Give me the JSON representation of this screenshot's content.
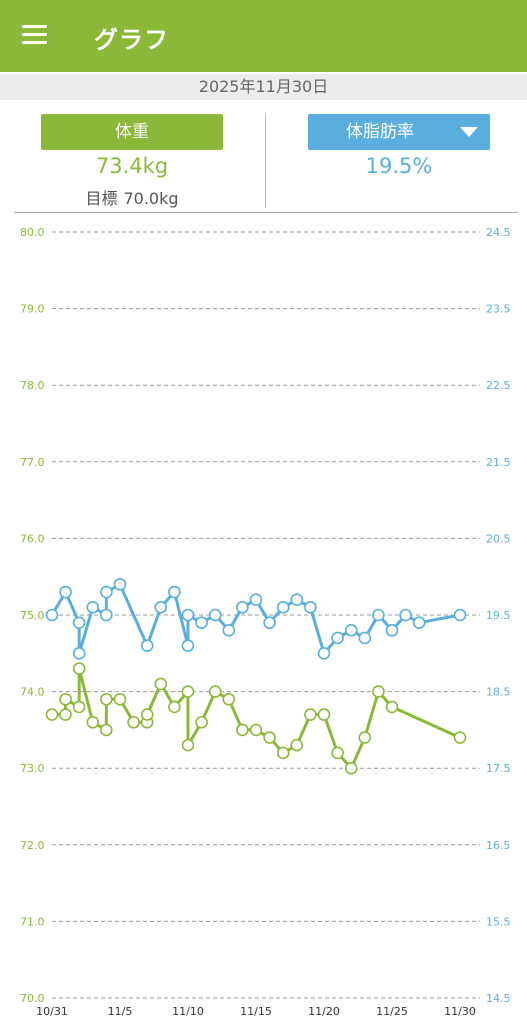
{
  "header": {
    "title": "グラフ",
    "menu_icon": "hamburger-menu-icon"
  },
  "date": "2025年11月30日",
  "weight": {
    "button_label": "体重",
    "value": "73.4kg",
    "goal_label": "目標",
    "goal_value": "70.0kg",
    "color": "#8cb83a"
  },
  "body_fat": {
    "button_label": "体脂肪率",
    "value": "19.5%",
    "dropdown_icon": "caret-down-icon",
    "color": "#5aaedd"
  },
  "chart_data": {
    "type": "line",
    "x_tick_labels": [
      "10/31",
      "11/5",
      "11/10",
      "11/15",
      "11/20",
      "11/25",
      "11/30"
    ],
    "x": [
      "10/31",
      "11/1",
      "11/2",
      "11/3",
      "11/4",
      "11/5",
      "11/6",
      "11/7",
      "11/8",
      "11/9",
      "11/10",
      "11/11",
      "11/12",
      "11/13",
      "11/14",
      "11/15",
      "11/16",
      "11/17",
      "11/18",
      "11/19",
      "11/20",
      "11/21",
      "11/22",
      "11/23",
      "11/24",
      "11/25",
      "11/26",
      "11/27",
      "11/28",
      "11/29",
      "11/30"
    ],
    "y_left": {
      "range": [
        70.0,
        80.0
      ],
      "ticks": [
        "80.0",
        "79.0",
        "78.0",
        "77.0",
        "76.0",
        "75.0",
        "74.0",
        "73.0",
        "72.0",
        "71.0",
        "70.0"
      ],
      "color": "#8cb83a"
    },
    "y_right": {
      "range": [
        14.5,
        24.5
      ],
      "ticks": [
        "24.5",
        "23.5",
        "22.5",
        "21.5",
        "20.5",
        "19.5",
        "18.5",
        "17.5",
        "16.5",
        "15.5",
        "14.5"
      ],
      "color": "#5aaedd"
    },
    "grid": "horizontal dashed",
    "series": [
      {
        "name": "体重",
        "axis": "left",
        "color": "#8cb83a",
        "points": [
          [
            "10/31",
            73.7
          ],
          [
            "10/31",
            73.7
          ],
          [
            "11/1",
            73.9
          ],
          [
            "11/1",
            73.8
          ],
          [
            "11/2",
            74.3
          ],
          [
            "11/3",
            73.6
          ],
          [
            "11/3",
            73.5
          ],
          [
            "11/4",
            73.9
          ],
          [
            "11/5",
            73.9
          ],
          [
            "11/6",
            73.6
          ],
          [
            "11/6",
            73.6
          ],
          [
            "11/7",
            73.7
          ],
          [
            "11/8",
            74.1
          ],
          [
            "11/9",
            73.8
          ],
          [
            "11/9",
            74.0
          ],
          [
            "11/10",
            73.3
          ],
          [
            "11/11",
            73.6
          ],
          [
            "11/12",
            74.0
          ],
          [
            "11/13",
            73.9
          ],
          [
            "11/14",
            73.5
          ],
          [
            "11/15",
            73.5
          ],
          [
            "11/16",
            73.4
          ],
          [
            "11/17",
            73.2
          ],
          [
            "11/18",
            73.3
          ],
          [
            "11/19",
            73.7
          ],
          [
            "11/20",
            73.7
          ],
          [
            "11/21",
            73.2
          ],
          [
            "11/22",
            73.0
          ],
          [
            "11/23",
            73.4
          ],
          [
            "11/24",
            74.0
          ],
          [
            "11/25",
            73.8
          ],
          [
            "11/30",
            73.4
          ]
        ]
      },
      {
        "name": "体脂肪率",
        "axis": "right",
        "color": "#5aaedd",
        "points": [
          [
            "10/31",
            19.5
          ],
          [
            "11/1",
            19.8
          ],
          [
            "11/1",
            19.4
          ],
          [
            "11/2",
            19.0
          ],
          [
            "11/3",
            19.6
          ],
          [
            "11/3",
            19.5
          ],
          [
            "11/4",
            19.8
          ],
          [
            "11/5",
            19.9
          ],
          [
            "11/7",
            19.1
          ],
          [
            "11/8",
            19.6
          ],
          [
            "11/9",
            19.8
          ],
          [
            "11/9",
            19.1
          ],
          [
            "11/10",
            19.5
          ],
          [
            "11/11",
            19.4
          ],
          [
            "11/12",
            19.5
          ],
          [
            "11/13",
            19.3
          ],
          [
            "11/14",
            19.6
          ],
          [
            "11/15",
            19.7
          ],
          [
            "11/16",
            19.4
          ],
          [
            "11/17",
            19.6
          ],
          [
            "11/18",
            19.7
          ],
          [
            "11/19",
            19.6
          ],
          [
            "11/20",
            19.0
          ],
          [
            "11/21",
            19.2
          ],
          [
            "11/22",
            19.3
          ],
          [
            "11/23",
            19.2
          ],
          [
            "11/24",
            19.5
          ],
          [
            "11/25",
            19.3
          ],
          [
            "11/26",
            19.5
          ],
          [
            "11/27",
            19.4
          ],
          [
            "11/30",
            19.5
          ]
        ]
      }
    ]
  }
}
